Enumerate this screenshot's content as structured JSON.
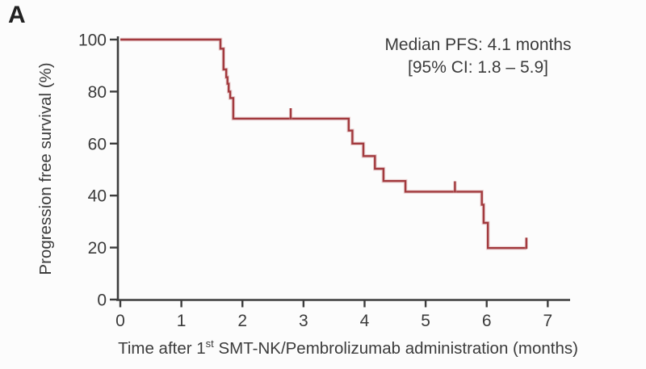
{
  "panel": {
    "label": "A"
  },
  "annotation": {
    "line1": "Median PFS: 4.1 months",
    "line2": "[95% CI: 1.8 – 5.9]"
  },
  "axes": {
    "ylabel": "Progression free survival (%)",
    "xlabel_pre": "Time after 1",
    "xlabel_sup": "st",
    "xlabel_post": " SMT-NK/Pembrolizumab administration (months)"
  },
  "colors": {
    "curve": "#a23a3e",
    "curve_halo": "#d2999b",
    "axis": "#3d3d3d",
    "tick_text": "#3b3b3b",
    "background": "#fcfcfc"
  },
  "chart_data": {
    "type": "line",
    "subtype": "kaplan-meier-step",
    "title": "",
    "xlabel": "Time after 1st SMT-NK/Pembrolizumab administration (months)",
    "ylabel": "Progression free survival (%)",
    "xlim": [
      0,
      7.37
    ],
    "ylim": [
      0,
      100
    ],
    "x_ticks": [
      0,
      1,
      2,
      3,
      4,
      5,
      6,
      7
    ],
    "y_ticks": [
      0,
      20,
      40,
      60,
      80,
      100
    ],
    "grid": false,
    "legend": "none",
    "median_pfs_months": 4.1,
    "ci95": [
      1.8,
      5.9
    ],
    "series": [
      {
        "name": "Progression free survival",
        "steps": [
          [
            0,
            100
          ],
          [
            1.64,
            100
          ],
          [
            1.64,
            96.5
          ],
          [
            1.69,
            96.5
          ],
          [
            1.69,
            88.5
          ],
          [
            1.735,
            88.5
          ],
          [
            1.735,
            85.5
          ],
          [
            1.755,
            85.5
          ],
          [
            1.755,
            83.0
          ],
          [
            1.775,
            83.0
          ],
          [
            1.775,
            80.0
          ],
          [
            1.8,
            80.0
          ],
          [
            1.8,
            77.5
          ],
          [
            1.85,
            77.5
          ],
          [
            1.85,
            69.6
          ],
          [
            3.74,
            69.6
          ],
          [
            3.74,
            65.0
          ],
          [
            3.8,
            65.0
          ],
          [
            3.8,
            60.0
          ],
          [
            3.98,
            60.0
          ],
          [
            3.98,
            55.2
          ],
          [
            4.17,
            55.2
          ],
          [
            4.17,
            50.3
          ],
          [
            4.31,
            50.3
          ],
          [
            4.31,
            45.6
          ],
          [
            4.67,
            45.6
          ],
          [
            4.67,
            41.5
          ],
          [
            5.92,
            41.5
          ],
          [
            5.92,
            36.5
          ],
          [
            5.95,
            36.5
          ],
          [
            5.95,
            29.5
          ],
          [
            6.02,
            29.5
          ],
          [
            6.02,
            19.8
          ],
          [
            6.65,
            19.8
          ]
        ]
      }
    ],
    "censor_marks": [
      [
        2.79,
        69.6
      ],
      [
        5.48,
        41.5
      ],
      [
        6.65,
        19.8
      ]
    ]
  }
}
